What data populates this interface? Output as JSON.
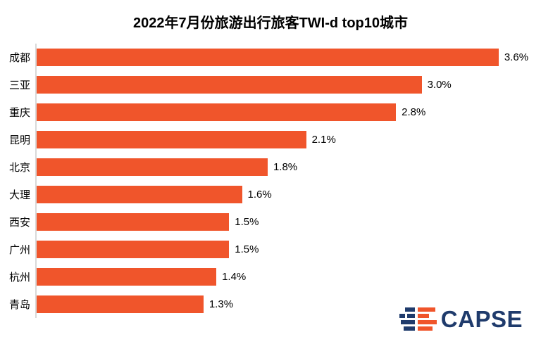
{
  "title": "2022年7月份旅游出行旅客TWI-d top10城市",
  "chart_data": {
    "type": "bar",
    "orientation": "horizontal",
    "title": "2022年7月份旅游出行旅客TWI-d top10城市",
    "categories": [
      "成都",
      "三亚",
      "重庆",
      "昆明",
      "北京",
      "大理",
      "西安",
      "广州",
      "杭州",
      "青岛"
    ],
    "values": [
      3.6,
      3.0,
      2.8,
      2.1,
      1.8,
      1.6,
      1.5,
      1.5,
      1.4,
      1.3
    ],
    "value_labels": [
      "3.6%",
      "3.0%",
      "2.8%",
      "2.1%",
      "1.8%",
      "1.6%",
      "1.5%",
      "1.5%",
      "1.4%",
      "1.3%"
    ],
    "xlabel": "",
    "ylabel": "",
    "xlim": [
      0,
      3.93
    ],
    "bar_color": "#F0552B",
    "axis_color": "#D9D9D9",
    "text_color": "#000000",
    "grid": false,
    "legend": false,
    "value_labels_visible": true
  },
  "logo": {
    "text": "CAPSE",
    "text_color": "#1F3B6C",
    "mark_blue": "#1F3B6C",
    "mark_orange": "#F0552B"
  }
}
